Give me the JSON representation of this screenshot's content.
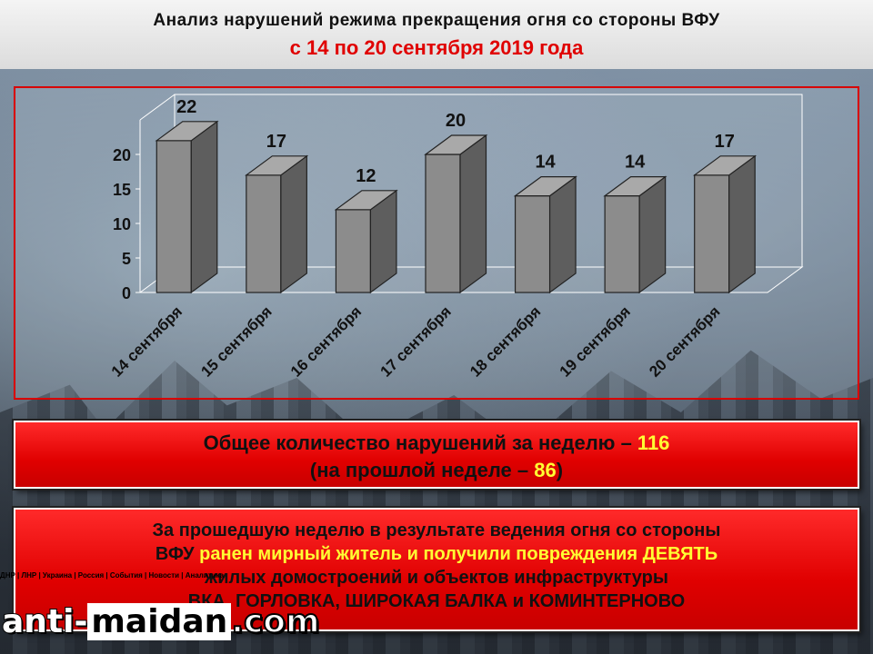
{
  "header": {
    "title": "Анализ нарушений режима прекращения огня со стороны ВФУ",
    "subtitle": "с 14 по 20 сентября 2019 года"
  },
  "chart_data": {
    "type": "bar",
    "categories": [
      "14 сентября",
      "15 сентября",
      "16 сентября",
      "17 сентября",
      "18 сентября",
      "19 сентября",
      "20 сентября"
    ],
    "values": [
      22,
      17,
      12,
      20,
      14,
      14,
      17
    ],
    "y_ticks": [
      0,
      5,
      10,
      15,
      20
    ],
    "ylim": [
      0,
      25
    ],
    "title": "",
    "xlabel": "",
    "ylabel": "",
    "bar_color": "#8a8a8a",
    "grid": false,
    "legend": false
  },
  "summary": {
    "line1_text": "Общее количество нарушений за неделю – ",
    "line1_value": "116",
    "line2_open": "(на прошлой неделе – ",
    "line2_value": "86",
    "line2_close": ")"
  },
  "details": {
    "line1": "За прошедшую неделю в результате ведения огня со стороны",
    "line2_prefix": "ВФУ ",
    "line2_highlight": "ранен мирный житель и получили повреждения",
    "line2_highlight2": " ДЕВЯТЬ",
    "line3": "жилых домостроений и объектов инфраструктуры",
    "line4": "ВКА, ГОРЛОВКА, ШИРОКАЯ БАЛКА и КОМИНТЕРНОВО"
  },
  "watermark": {
    "strip": "ДНР | ЛНР | Украина | Россия | События | Новости | Аналитика",
    "logo_part1": "anti-",
    "logo_part2": "maidan",
    "logo_part3": ".com"
  },
  "colors": {
    "accent_red": "#e00000",
    "highlight_yellow": "#ffff33"
  }
}
